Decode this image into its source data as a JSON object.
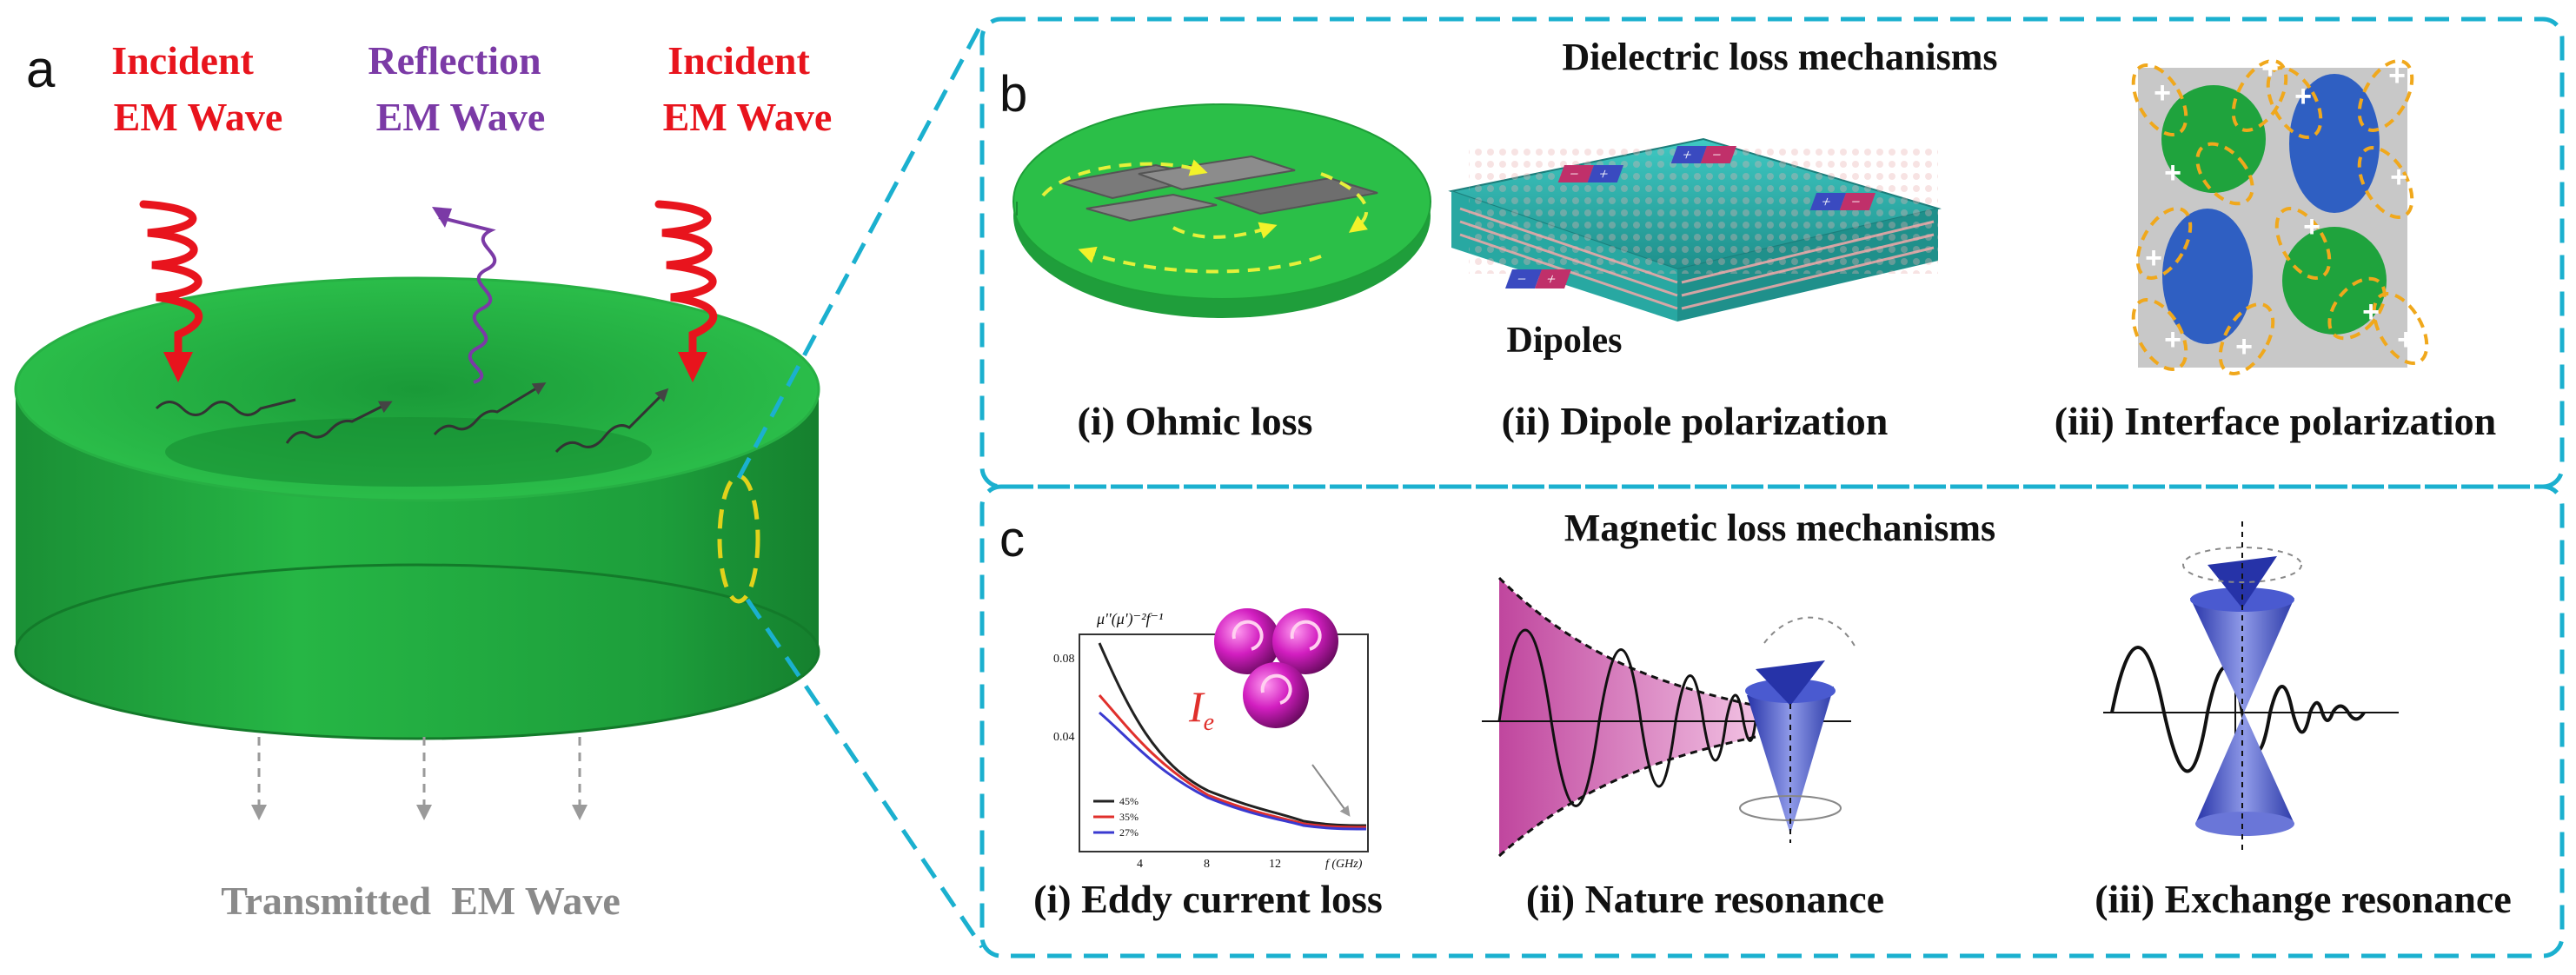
{
  "colors": {
    "panel_border": "#1bb0cf",
    "disk_green": "#1fa33d",
    "disk_top": "#2bbf48",
    "incident_red": "#e8141d",
    "reflection_purple": "#7b3aa6",
    "transmitted_gray": "#8a8a8a",
    "dashed_yellow": "#e2d21b",
    "orange_dash": "#f0a81c",
    "cone_blue": "#3f4fc4",
    "pink_fill": "#d26ab5"
  },
  "panel_a": {
    "letter": "a",
    "incident_left": [
      "Incident",
      "EM Wave"
    ],
    "reflection": [
      "Reflection",
      "EM Wave"
    ],
    "incident_right": [
      "Incident",
      "EM Wave"
    ],
    "transmitted": "Transmitted  EM Wave"
  },
  "panel_b": {
    "letter": "b",
    "title": "Dielectric loss mechanisms",
    "dipoles_label": "Dipoles",
    "captions": [
      "(i) Ohmic loss",
      "(ii) Dipole polarization",
      "(iii) Interface polarization"
    ]
  },
  "panel_c": {
    "letter": "c",
    "title": "Magnetic loss mechanisms",
    "captions": [
      "(i) Eddy current loss",
      "(ii) Nature resonance",
      "(iii) Exchange resonance"
    ],
    "plot": {
      "ylabel": "μ''(μ')⁻²f⁻¹",
      "xlabel": "f (GHz)",
      "yticks": [
        "0.08",
        "0.04"
      ],
      "xticks": [
        "4",
        "8",
        "12"
      ],
      "ie_label": "I",
      "ie_sub": "e",
      "legend": [
        "45%",
        "35%",
        "27%"
      ],
      "legend_colors": [
        "#222222",
        "#e0302c",
        "#3a3ad0"
      ]
    }
  }
}
